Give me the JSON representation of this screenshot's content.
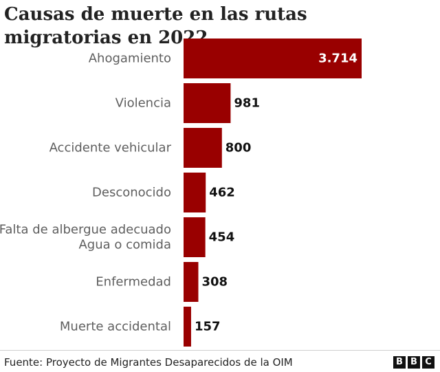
{
  "title": "Causas de muerte en las rutas migratorias en 2022",
  "colors": {
    "bar": "#990000",
    "value_inside": "#ffffff",
    "value_outside": "#111111",
    "category": "#5e5e5e"
  },
  "chart_data": {
    "type": "bar",
    "orientation": "horizontal",
    "title": "Causas de muerte en las rutas migratorias en 2022",
    "categories": [
      [
        "Ahogamiento"
      ],
      [
        "Violencia"
      ],
      [
        "Accidente vehicular"
      ],
      [
        "Desconocido"
      ],
      [
        "Falta de albergue adecuado",
        "Agua o comida"
      ],
      [
        "Enfermedad"
      ],
      [
        "Muerte accidental"
      ]
    ],
    "values": [
      3714,
      981,
      800,
      462,
      454,
      308,
      157
    ],
    "value_labels": [
      "3.714",
      "981",
      "800",
      "462",
      "454",
      "308",
      "157"
    ],
    "xlabel": "",
    "ylabel": "",
    "xlim": [
      0,
      3714
    ],
    "grid": false,
    "legend": "none"
  },
  "source": "Fuente: Proyecto de Migrantes Desaparecidos de la OIM",
  "logo": [
    "B",
    "B",
    "C"
  ]
}
